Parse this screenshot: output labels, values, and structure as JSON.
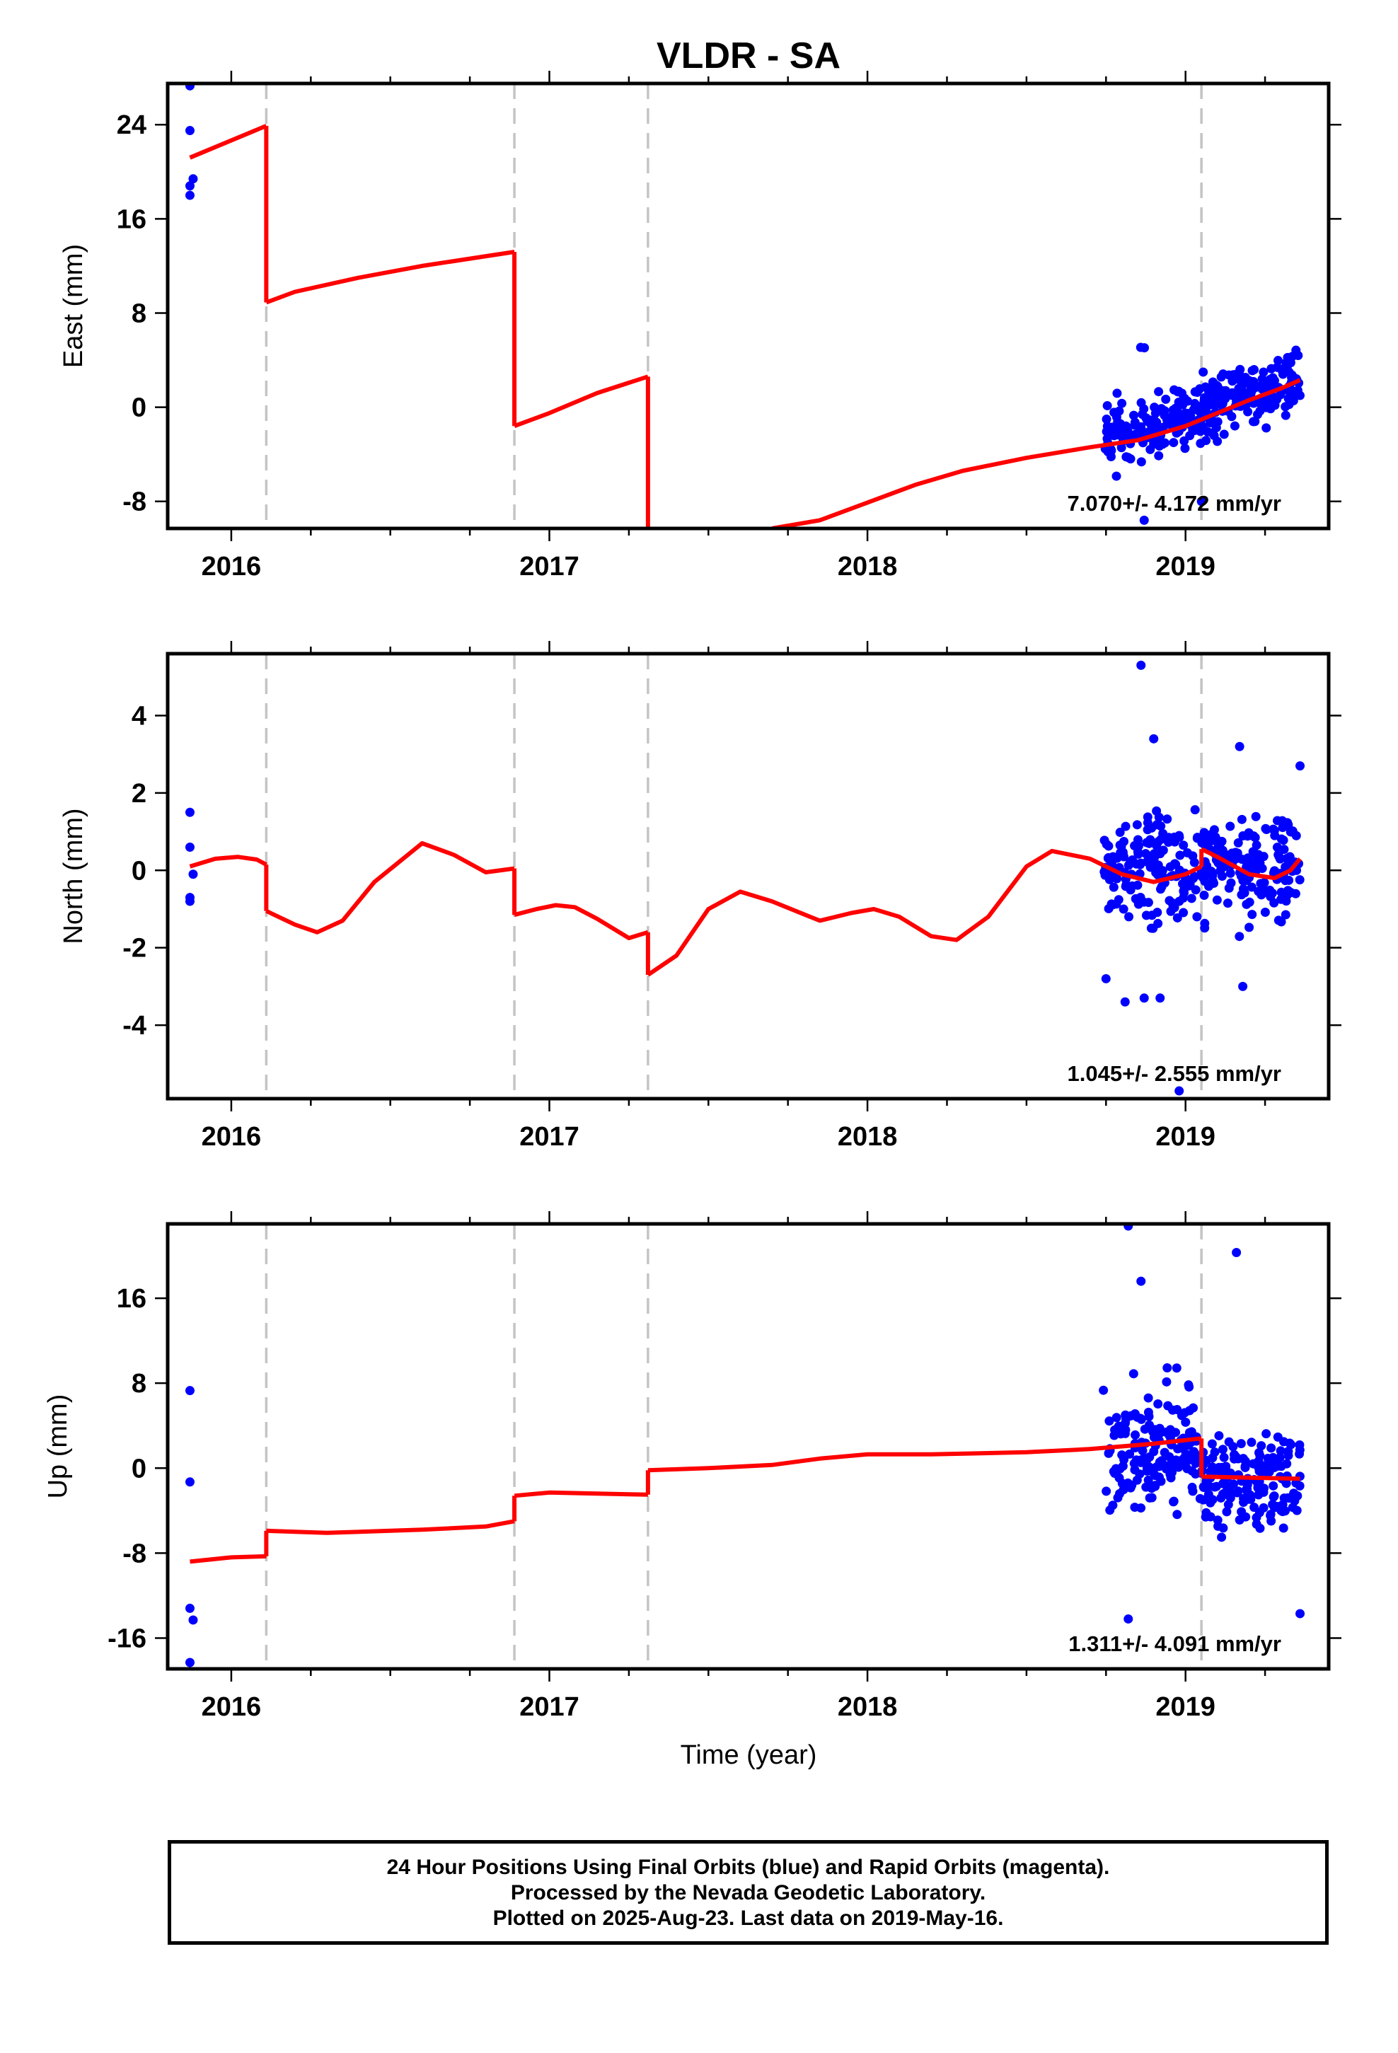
{
  "title": "VLDR - SA",
  "xlabel": "Time (year)",
  "x_ticks": [
    2016,
    2017,
    2018,
    2019
  ],
  "footer": {
    "line1": "24 Hour Positions Using Final Orbits (blue) and Rapid Orbits (magenta).",
    "line2": "Processed by the Nevada Geodetic Laboratory.",
    "line3": "Plotted on 2025-Aug-23. Last data on 2019-May-16."
  },
  "chart_data": [
    {
      "type": "scatter",
      "panel": "east",
      "ylabel": "East (mm)",
      "xlim": [
        2015.8,
        2019.45
      ],
      "ylim": [
        -10.3,
        27.5
      ],
      "y_ticks": [
        -8,
        0,
        8,
        16,
        24
      ],
      "rate": "7.070+/- 4.172 mm/yr",
      "offsets_x": [
        2016.11,
        2016.89,
        2017.31,
        2019.05
      ],
      "model_segments": [
        [
          [
            2015.87,
            21.2
          ],
          [
            2016.11,
            23.9
          ]
        ],
        [
          [
            2016.11,
            8.9
          ],
          [
            2016.2,
            9.8
          ],
          [
            2016.4,
            11.0
          ],
          [
            2016.6,
            12.0
          ],
          [
            2016.89,
            13.2
          ]
        ],
        [
          [
            2016.89,
            -1.6
          ],
          [
            2017.0,
            -0.5
          ],
          [
            2017.15,
            1.2
          ],
          [
            2017.31,
            2.6
          ]
        ],
        [
          [
            2017.31,
            -10.3
          ]
        ],
        [
          [
            2017.7,
            -10.3
          ],
          [
            2017.85,
            -9.6
          ],
          [
            2018.0,
            -8.1
          ],
          [
            2018.15,
            -6.6
          ],
          [
            2018.3,
            -5.4
          ],
          [
            2018.5,
            -4.3
          ],
          [
            2018.7,
            -3.4
          ],
          [
            2018.85,
            -2.8
          ],
          [
            2019.0,
            -1.6
          ],
          [
            2019.1,
            -0.5
          ],
          [
            2019.2,
            0.6
          ],
          [
            2019.3,
            1.6
          ],
          [
            2019.36,
            2.3
          ]
        ]
      ],
      "clusters": [
        {
          "x0": 2018.74,
          "x1": 2019.36,
          "y0": -2.8,
          "y1": 2.3,
          "spread": 2.2,
          "n": 330,
          "seed": 11
        },
        {
          "x0": 2018.84,
          "x1": 2018.92,
          "y0": 5.0,
          "y1": 5.0,
          "spread": 0.1,
          "n": 2,
          "seed": 3
        }
      ],
      "points": [
        [
          2015.87,
          27.3
        ],
        [
          2015.87,
          23.5
        ],
        [
          2015.88,
          19.4
        ],
        [
          2015.87,
          18.8
        ],
        [
          2015.87,
          18.0
        ],
        [
          2018.87,
          -9.6
        ],
        [
          2019.05,
          -8.0
        ]
      ]
    },
    {
      "type": "scatter",
      "panel": "north",
      "ylabel": "North (mm)",
      "xlim": [
        2015.8,
        2019.45
      ],
      "ylim": [
        -5.9,
        5.6
      ],
      "y_ticks": [
        -4,
        -2,
        0,
        2,
        4
      ],
      "rate": "1.045+/- 2.555 mm/yr",
      "offsets_x": [
        2016.11,
        2016.89,
        2017.31,
        2019.05
      ],
      "model_segments": [
        [
          [
            2015.87,
            0.1
          ],
          [
            2015.95,
            0.3
          ],
          [
            2016.02,
            0.35
          ],
          [
            2016.08,
            0.28
          ],
          [
            2016.11,
            0.15
          ]
        ],
        [
          [
            2016.11,
            -1.05
          ],
          [
            2016.2,
            -1.4
          ],
          [
            2016.27,
            -1.6
          ],
          [
            2016.35,
            -1.3
          ],
          [
            2016.45,
            -0.3
          ],
          [
            2016.6,
            0.7
          ],
          [
            2016.7,
            0.4
          ],
          [
            2016.8,
            -0.05
          ],
          [
            2016.89,
            0.05
          ]
        ],
        [
          [
            2016.89,
            -1.15
          ],
          [
            2016.96,
            -1.0
          ],
          [
            2017.02,
            -0.9
          ],
          [
            2017.08,
            -0.95
          ],
          [
            2017.15,
            -1.25
          ],
          [
            2017.25,
            -1.75
          ],
          [
            2017.31,
            -1.6
          ]
        ],
        [
          [
            2017.31,
            -2.7
          ],
          [
            2017.4,
            -2.2
          ],
          [
            2017.5,
            -1.0
          ],
          [
            2017.6,
            -0.55
          ],
          [
            2017.7,
            -0.8
          ],
          [
            2017.85,
            -1.3
          ],
          [
            2017.95,
            -1.1
          ],
          [
            2018.02,
            -1.0
          ],
          [
            2018.1,
            -1.2
          ],
          [
            2018.2,
            -1.7
          ],
          [
            2018.28,
            -1.8
          ],
          [
            2018.38,
            -1.2
          ],
          [
            2018.5,
            0.1
          ],
          [
            2018.58,
            0.5
          ],
          [
            2018.7,
            0.3
          ],
          [
            2018.8,
            -0.1
          ],
          [
            2018.9,
            -0.3
          ],
          [
            2019.0,
            -0.1
          ],
          [
            2019.05,
            0.1
          ]
        ],
        [
          [
            2019.05,
            0.55
          ],
          [
            2019.1,
            0.35
          ],
          [
            2019.2,
            -0.1
          ],
          [
            2019.28,
            -0.2
          ],
          [
            2019.33,
            0.0
          ],
          [
            2019.36,
            0.3
          ]
        ]
      ],
      "clusters": [
        {
          "x0": 2018.74,
          "x1": 2019.36,
          "y0": 0.0,
          "y1": 0.2,
          "spread": 1.1,
          "n": 330,
          "seed": 29
        }
      ],
      "points": [
        [
          2015.87,
          1.5
        ],
        [
          2015.87,
          0.6
        ],
        [
          2015.88,
          -0.1
        ],
        [
          2015.87,
          -0.7
        ],
        [
          2015.87,
          -0.8
        ],
        [
          2018.86,
          5.3
        ],
        [
          2018.9,
          3.4
        ],
        [
          2019.17,
          3.2
        ],
        [
          2019.36,
          2.7
        ],
        [
          2018.75,
          -2.8
        ],
        [
          2018.81,
          -3.4
        ],
        [
          2018.87,
          -3.3
        ],
        [
          2018.92,
          -3.3
        ],
        [
          2019.18,
          -3.0
        ],
        [
          2018.98,
          -5.7
        ]
      ]
    },
    {
      "type": "scatter",
      "panel": "up",
      "ylabel": "Up (mm)",
      "xlim": [
        2015.8,
        2019.45
      ],
      "ylim": [
        -18.9,
        23.0
      ],
      "y_ticks": [
        -16,
        -8,
        0,
        8,
        16
      ],
      "rate": "1.311+/- 4.091 mm/yr",
      "offsets_x": [
        2016.11,
        2016.89,
        2017.31,
        2019.05
      ],
      "model_segments": [
        [
          [
            2015.87,
            -8.8
          ],
          [
            2016.0,
            -8.4
          ],
          [
            2016.11,
            -8.3
          ]
        ],
        [
          [
            2016.11,
            -5.9
          ],
          [
            2016.3,
            -6.1
          ],
          [
            2016.6,
            -5.8
          ],
          [
            2016.8,
            -5.5
          ],
          [
            2016.89,
            -5.0
          ]
        ],
        [
          [
            2016.89,
            -2.6
          ],
          [
            2017.0,
            -2.3
          ],
          [
            2017.15,
            -2.4
          ],
          [
            2017.31,
            -2.5
          ]
        ],
        [
          [
            2017.31,
            -0.2
          ],
          [
            2017.5,
            0.0
          ],
          [
            2017.7,
            0.3
          ],
          [
            2017.85,
            0.9
          ],
          [
            2018.0,
            1.3
          ],
          [
            2018.2,
            1.3
          ],
          [
            2018.5,
            1.5
          ],
          [
            2018.7,
            1.8
          ],
          [
            2018.9,
            2.3
          ],
          [
            2019.05,
            2.8
          ]
        ],
        [
          [
            2019.05,
            -0.8
          ],
          [
            2019.2,
            -0.9
          ],
          [
            2019.36,
            -1.0
          ]
        ]
      ],
      "clusters": [
        {
          "x0": 2018.74,
          "x1": 2019.05,
          "y0": 1.5,
          "y1": 2.5,
          "spread": 5.0,
          "n": 160,
          "seed": 47
        },
        {
          "x0": 2019.05,
          "x1": 2019.36,
          "y0": -1.0,
          "y1": -1.0,
          "spread": 4.0,
          "n": 160,
          "seed": 53
        }
      ],
      "points": [
        [
          2015.87,
          7.3
        ],
        [
          2015.87,
          -1.3
        ],
        [
          2015.87,
          -13.2
        ],
        [
          2015.88,
          -14.3
        ],
        [
          2015.87,
          -18.3
        ],
        [
          2018.82,
          22.8
        ],
        [
          2019.16,
          20.3
        ],
        [
          2018.86,
          17.6
        ],
        [
          2019.36,
          -13.7
        ],
        [
          2018.82,
          -14.2
        ]
      ]
    }
  ]
}
